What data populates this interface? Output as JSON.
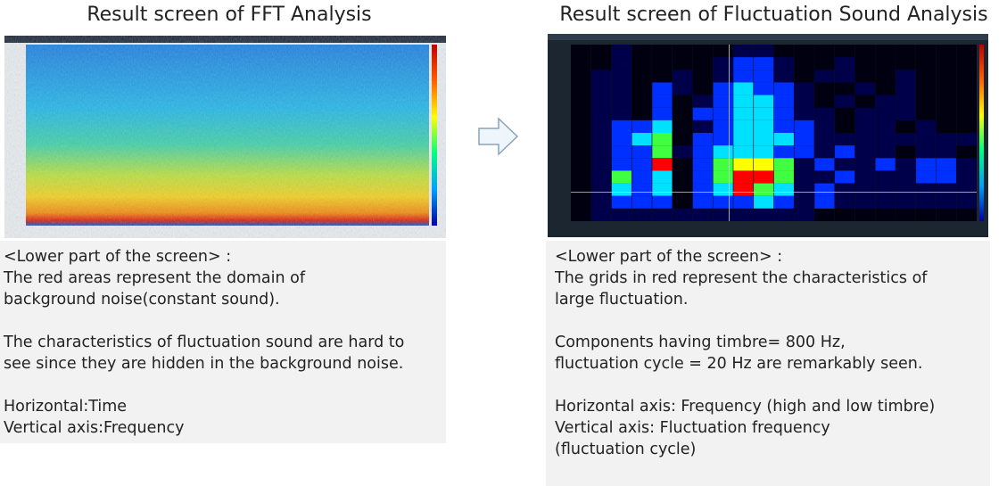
{
  "left": {
    "title": "Result screen of FFT Analysis",
    "paragraphs": [
      [
        "<Lower part of the screen> :",
        "The red areas represent the domain of",
        "background noise(constant sound)."
      ],
      [
        "The characteristics of fluctuation sound are hard to",
        "see since they are hidden in the background noise."
      ],
      [
        "Horizontal:Time",
        "Vertical axis:Frequency"
      ]
    ]
  },
  "right": {
    "title": "Result screen of Fluctuation Sound Analysis",
    "paragraphs": [
      [
        "<Lower part of the screen> :",
        "The grids in red represent the characteristics of",
        "large fluctuation."
      ],
      [
        "Components having timbre= 800 Hz,",
        "fluctuation cycle = 20 Hz are remarkably seen."
      ],
      [
        "Horizontal axis: Frequency (high and low timbre)",
        "Vertical axis: Fluctuation frequency",
        "(fluctuation cycle)"
      ]
    ]
  }
}
